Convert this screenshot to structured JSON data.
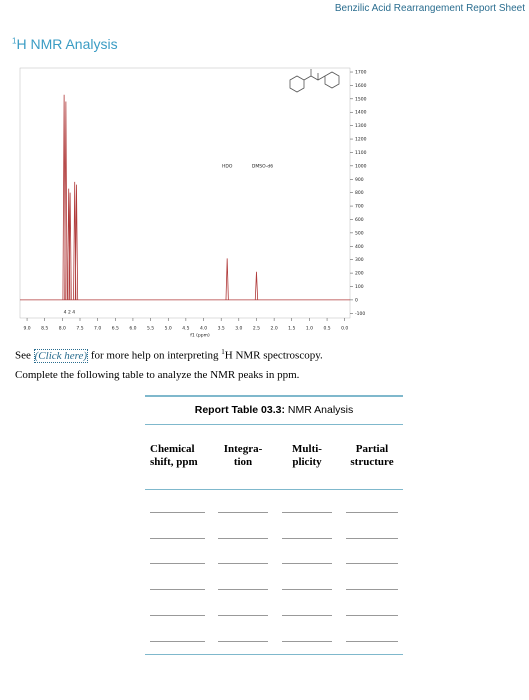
{
  "header": {
    "title": "Benzilic Acid Rearrangement Report Sheet"
  },
  "section_title": {
    "superscript": "1",
    "text": "H NMR Analysis"
  },
  "spectrum": {
    "type": "spectrum",
    "x_label": "f1 (ppm)",
    "integrals": "4 2 4",
    "annotations": [
      "HDO",
      "DMSO-d6"
    ],
    "xlim": [
      9.2,
      -0.15
    ],
    "xticks": [
      {
        "value": 9,
        "label": "9.0"
      },
      8.5,
      {
        "value": 8,
        "label": "8.0"
      },
      7.5,
      {
        "value": 7,
        "label": "7.0"
      },
      6.5,
      {
        "value": 6,
        "label": "6.0"
      },
      5.5,
      {
        "value": 5,
        "label": "5.0"
      },
      4.5,
      {
        "value": 4,
        "label": "4.0"
      },
      3.5,
      {
        "value": 3,
        "label": "3.0"
      },
      2.5,
      {
        "value": 2,
        "label": "2.0"
      },
      1.5,
      {
        "value": 1,
        "label": "1.0"
      },
      0.5,
      {
        "value": 0,
        "label": "0.0"
      }
    ],
    "ylim": [
      -135,
      1730
    ],
    "yticks": [
      1700,
      1600,
      1500,
      1400,
      1300,
      1200,
      1100,
      1000,
      900,
      800,
      700,
      600,
      500,
      400,
      300,
      200,
      100,
      0,
      -100
    ],
    "color": "#b03a3a",
    "peaks": {
      "x": [
        7.95,
        7.9,
        7.82,
        7.78,
        7.65,
        7.6,
        3.33,
        2.5
      ],
      "values": [
        1530,
        1480,
        830,
        800,
        880,
        860,
        310,
        210
      ]
    }
  },
  "help": {
    "before": "See ",
    "link": "(Click here)",
    "after": " for more help on interpreting ",
    "sup": "1",
    "after2": "H NMR spectroscopy."
  },
  "instruction": "Complete the following table to analyze the NMR peaks in ppm.",
  "table": {
    "caption_bold": "Report Table 03.3:",
    "caption": " NMR Analysis",
    "headers": [
      "Chemical shift, ppm",
      "Integra-tion",
      "Multi-plicity",
      "Partial structure"
    ]
  }
}
